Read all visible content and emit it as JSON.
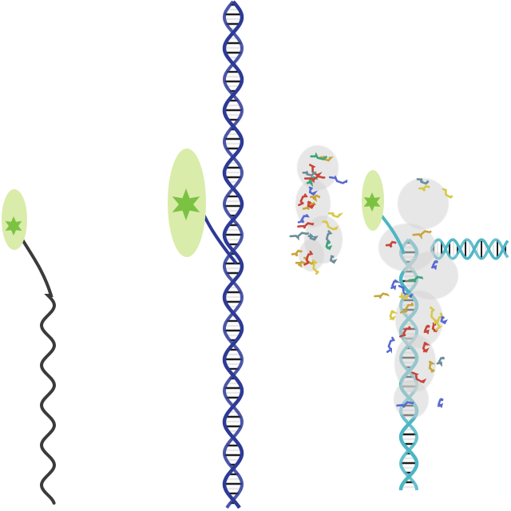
{
  "colors": {
    "background": "#ffffff",
    "probe_halo": "#d9ecaa",
    "probe_star": "#7cc242",
    "single_strand": "#3b3b3b",
    "duplex_strand": "#2d3a96",
    "bound_duplex_strand": "#4db6c4",
    "base_pair_dark": "#1e1e1e",
    "base_pair_light": "#e8e8e8",
    "protein_surface": "#d4d4d4",
    "protein_helix_green": "#3aa57a",
    "protein_helix_red": "#c8453a",
    "protein_sheet_gold": "#c9a43a",
    "protein_helix_blue": "#5a6ad0",
    "protein_yellow": "#d8c84a"
  },
  "panels": [
    {
      "name": "labeled-single-strand",
      "icons": [
        "fluorophore-icon",
        "single-strand-dna-icon"
      ]
    },
    {
      "name": "labeled-double-strand",
      "icons": [
        "fluorophore-icon",
        "double-helix-dna-icon"
      ]
    },
    {
      "name": "free-protein",
      "icons": [
        "protein-structure-icon"
      ]
    },
    {
      "name": "protein-dna-complex",
      "icons": [
        "fluorophore-icon",
        "double-helix-dna-icon",
        "protein-structure-icon"
      ]
    }
  ]
}
